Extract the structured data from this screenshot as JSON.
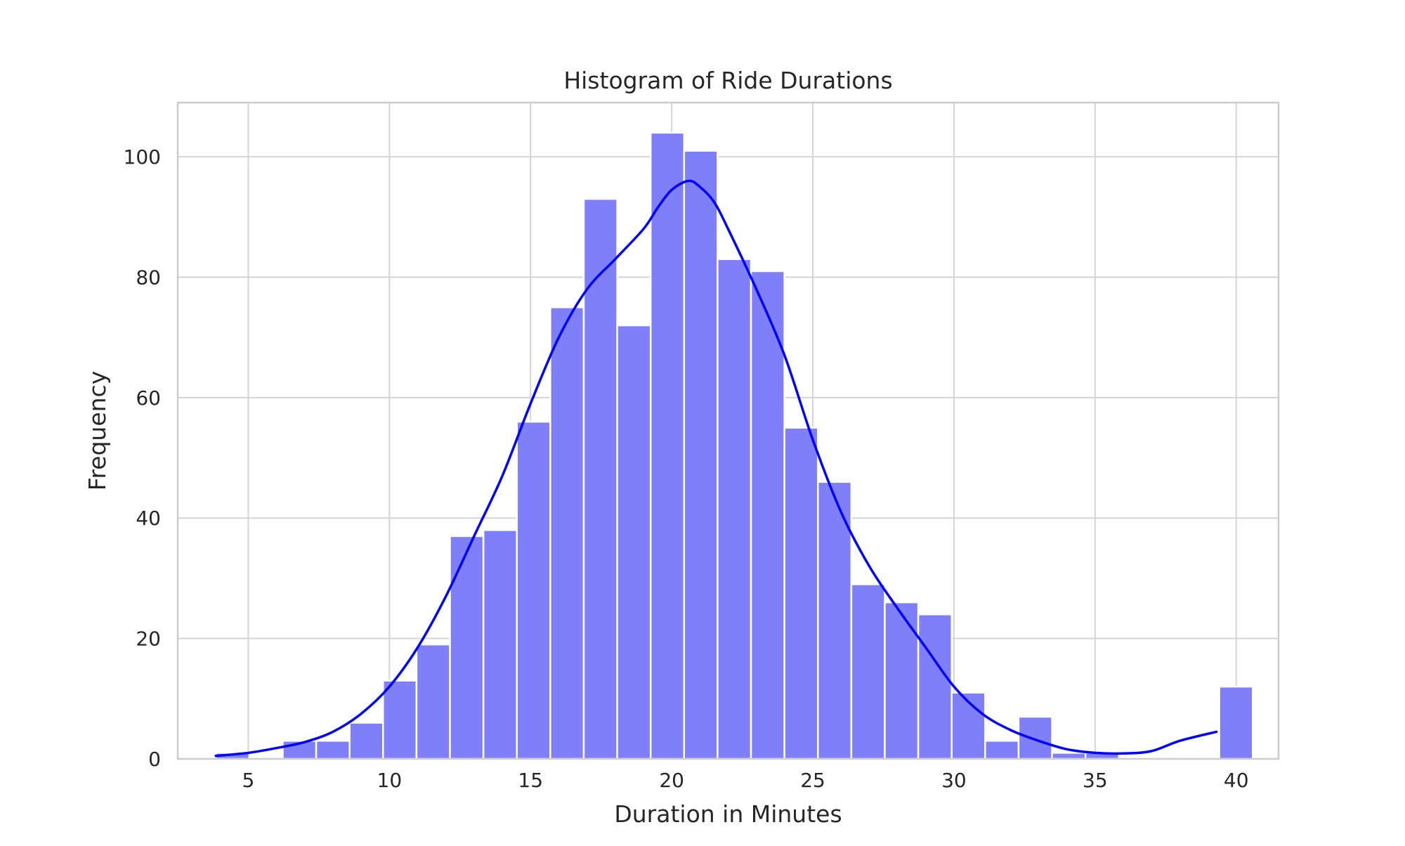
{
  "chart_data": {
    "type": "histogram",
    "title": "Histogram of Ride Durations",
    "xlabel": "Duration in Minutes",
    "ylabel": "Frequency",
    "xlim": [
      2.5,
      41.5
    ],
    "ylim": [
      0,
      109
    ],
    "x_ticks": [
      5,
      10,
      15,
      20,
      25,
      30,
      35,
      40
    ],
    "y_ticks": [
      0,
      20,
      40,
      60,
      80,
      100
    ],
    "grid": true,
    "bar_color": "#7f7ff9",
    "kde_color": "#0000ff",
    "bins": {
      "start": 3.85,
      "width": 1.185,
      "counts": [
        1,
        0,
        3,
        3,
        6,
        13,
        19,
        37,
        38,
        56,
        75,
        93,
        72,
        104,
        101,
        83,
        81,
        55,
        46,
        29,
        26,
        24,
        11,
        3,
        7,
        1,
        1,
        0,
        0,
        0,
        12
      ]
    },
    "kde": {
      "x": [
        3.85,
        5,
        6,
        7,
        8,
        9,
        10,
        11,
        12,
        13,
        14,
        15,
        16,
        17,
        18,
        19,
        19.5,
        20,
        20.6,
        21,
        21.5,
        22,
        23,
        24,
        25,
        26,
        27,
        28,
        29,
        30,
        31,
        32,
        33,
        34,
        35,
        36,
        37,
        38,
        39.3
      ],
      "y": [
        0.5,
        1,
        1.8,
        2.8,
        4.5,
        7.5,
        12,
        18.5,
        27,
        37,
        47,
        59,
        70,
        78,
        83,
        88,
        91.5,
        94.5,
        96,
        95,
        92.5,
        88,
        78,
        67,
        53,
        41,
        32,
        25,
        18.5,
        12,
        7.5,
        4.8,
        3,
        1.6,
        1,
        0.9,
        1.3,
        3,
        4.5
      ]
    }
  }
}
